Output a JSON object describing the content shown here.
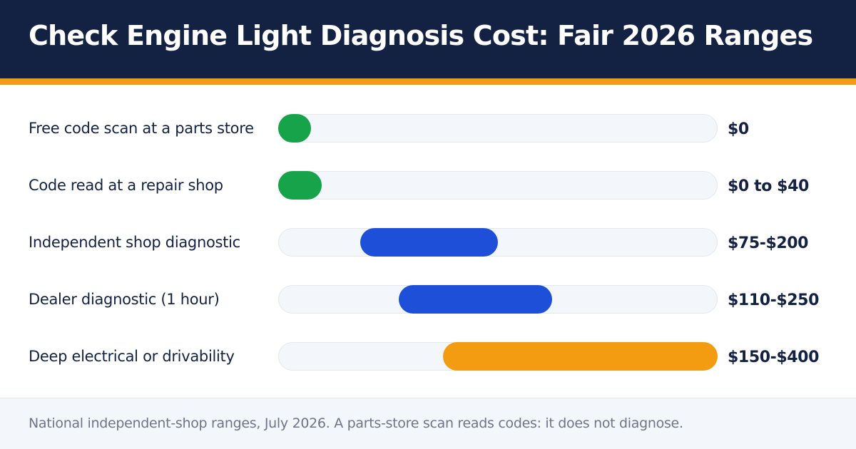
{
  "header": {
    "title": "Check Engine Light Diagnosis Cost: Fair 2026 Ranges"
  },
  "colors": {
    "header_bg": "#132142",
    "accent": "#f39c12",
    "free_green": "#16a34a",
    "mid_blue": "#1d4fd8",
    "high_orange": "#f39c12",
    "track": "#f3f6fa"
  },
  "chart_data": {
    "type": "bar",
    "subtype": "horizontal-range",
    "categories": [
      "Free code scan at a parts store",
      "Code read at a repair shop",
      "Independent shop diagnostic",
      "Dealer diagnostic (1 hour)",
      "Deep electrical or drivability"
    ],
    "ranges": [
      [
        0,
        0
      ],
      [
        0,
        40
      ],
      [
        75,
        200
      ],
      [
        110,
        250
      ],
      [
        150,
        400
      ]
    ],
    "value_labels": [
      "$0",
      "$0 to $40",
      "$75-$200",
      "$110-$250",
      "$150-$400"
    ],
    "bar_colors": [
      "#16a34a",
      "#16a34a",
      "#1d4fd8",
      "#1d4fd8",
      "#f39c12"
    ],
    "xlim": [
      0,
      400
    ],
    "grid": false,
    "legend": "none"
  },
  "footer": {
    "note": "National independent-shop ranges, July 2026. A parts-store scan reads codes: it does not diagnose."
  }
}
